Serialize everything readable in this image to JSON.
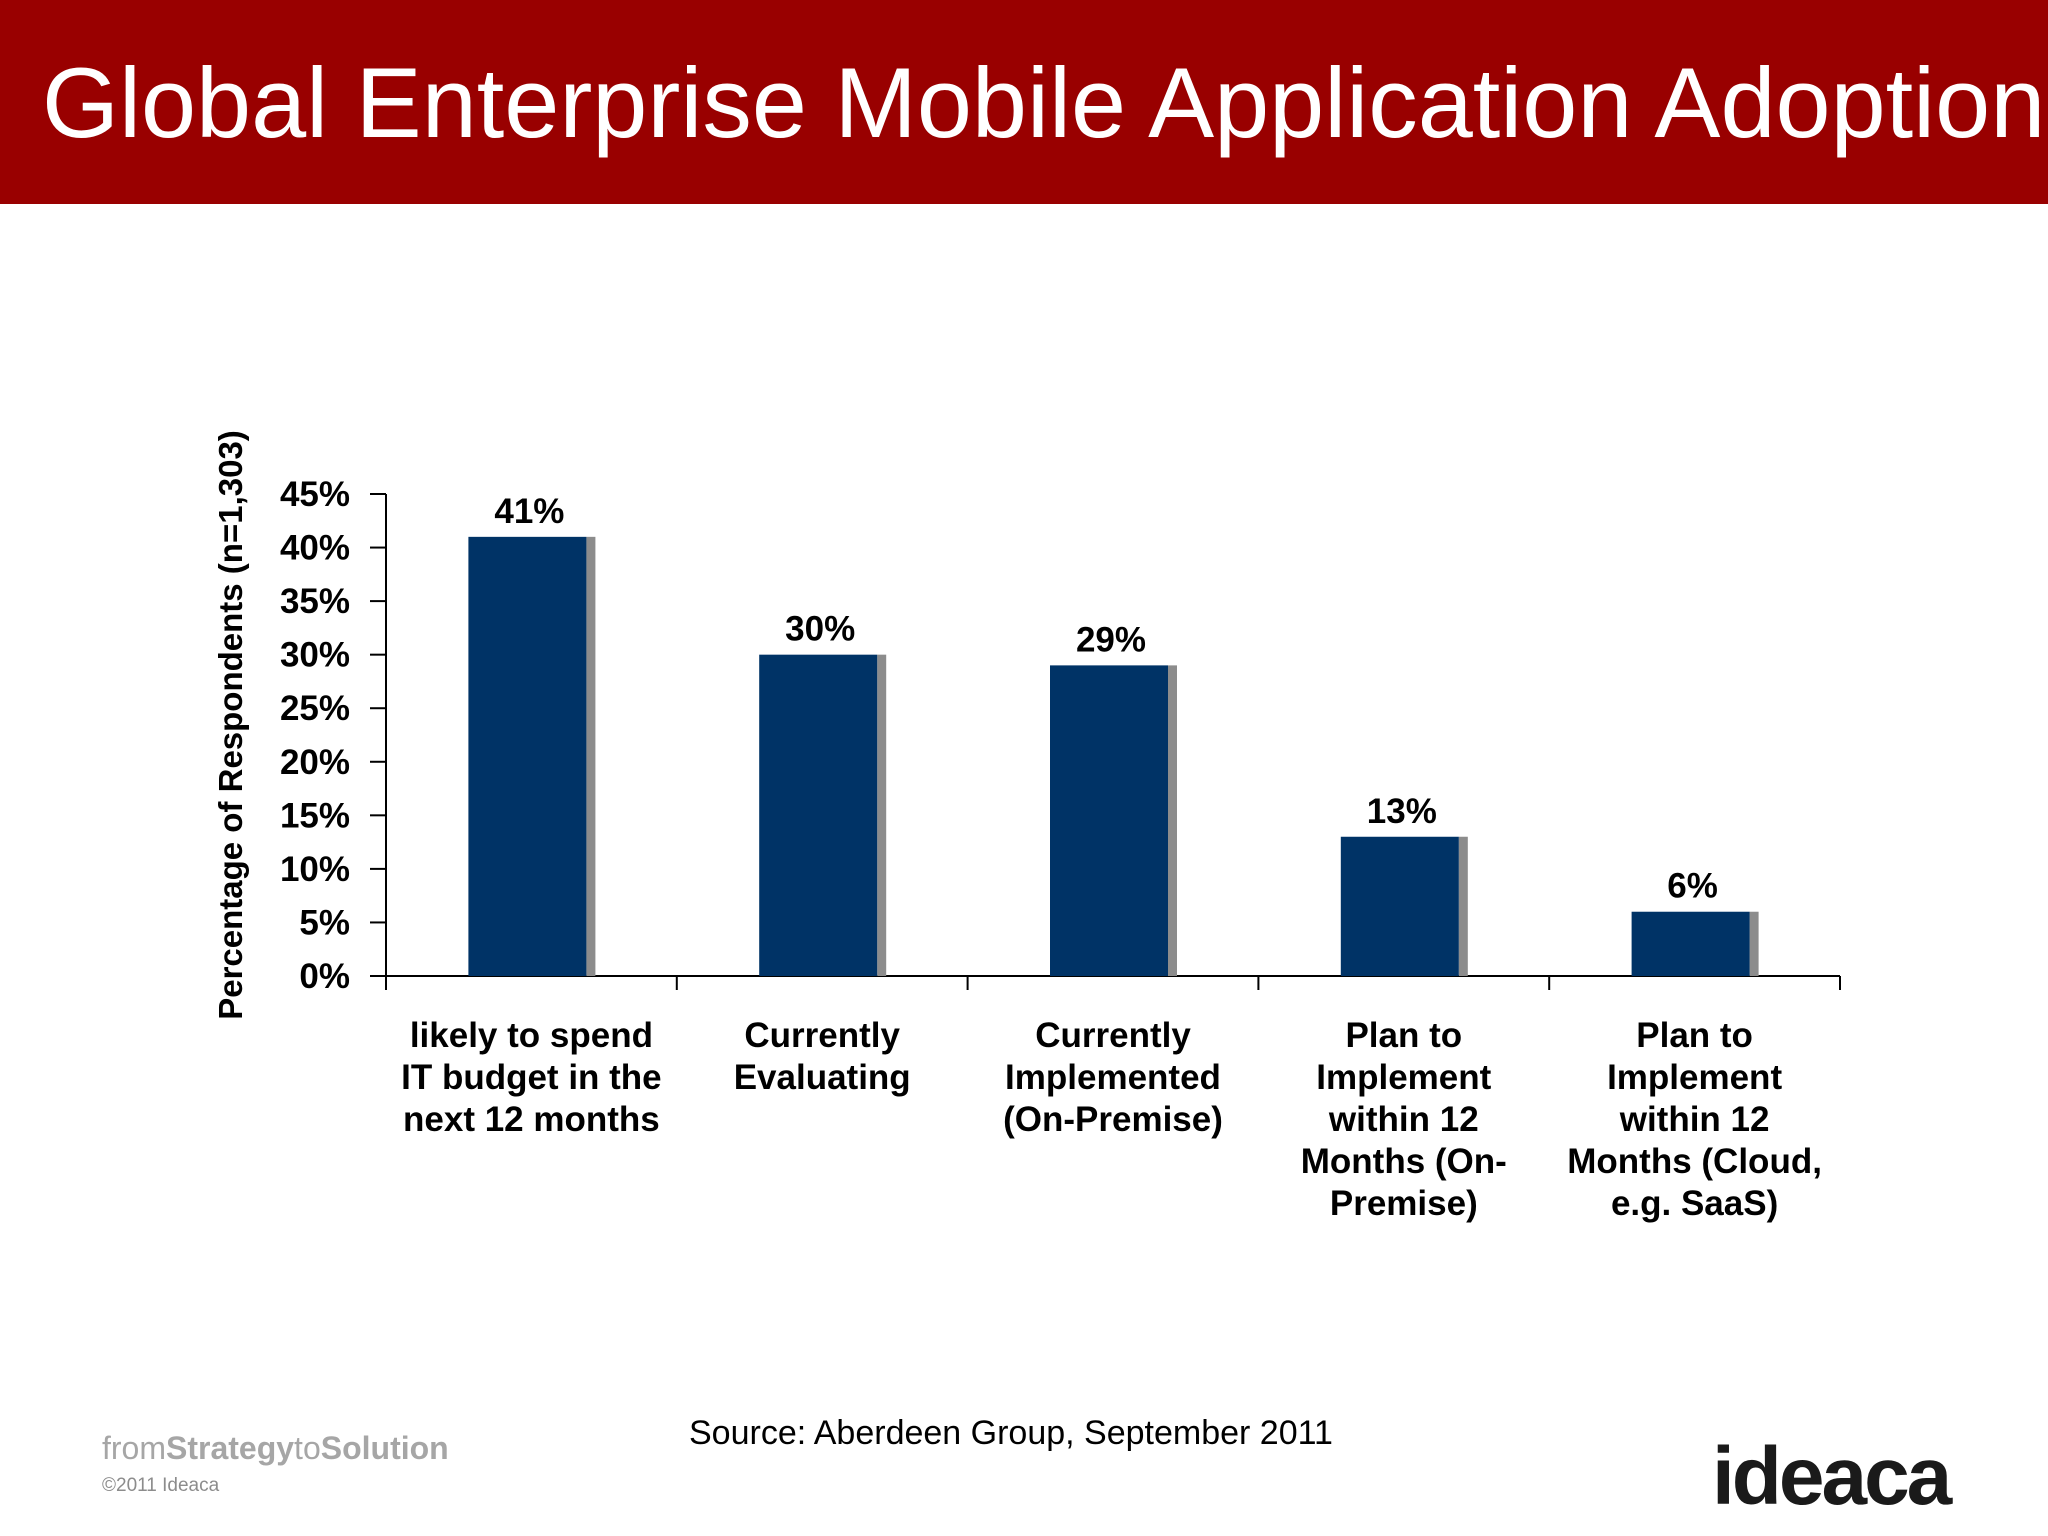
{
  "slide": {
    "title": "Global Enterprise Mobile Application Adoption",
    "source": "Source: Aberdeen Group, September 2011"
  },
  "footer": {
    "tagline": [
      "from",
      "Strategy",
      "to",
      "Solution"
    ],
    "copyright": "©2011 Ideaca",
    "logo": "ideaca"
  },
  "colors": {
    "title_bar": "#990000",
    "bar": "#003366",
    "bar_shadow": "#8c8c8c",
    "axis": "#000000"
  },
  "chart_data": {
    "type": "bar",
    "title": "",
    "ylabel": "Percentage of Respondents (n=1,303)",
    "xlabel": "",
    "ylim": [
      0,
      45
    ],
    "yticks": [
      "0%",
      "5%",
      "10%",
      "15%",
      "20%",
      "25%",
      "30%",
      "35%",
      "40%",
      "45%"
    ],
    "grid": false,
    "legend": "none",
    "categories": [
      [
        "likely to spend",
        "IT budget in the",
        "next 12 months"
      ],
      [
        "Currently",
        "Evaluating"
      ],
      [
        "Currently",
        "Implemented",
        "(On-Premise)"
      ],
      [
        "Plan to",
        "Implement",
        "within 12",
        "Months (On-",
        "Premise)"
      ],
      [
        "Plan to",
        "Implement",
        "within 12",
        "Months (Cloud,",
        "e.g. SaaS)"
      ]
    ],
    "values": [
      41,
      30,
      29,
      13,
      6
    ],
    "data_labels": [
      "41%",
      "30%",
      "29%",
      "13%",
      "6%"
    ]
  }
}
